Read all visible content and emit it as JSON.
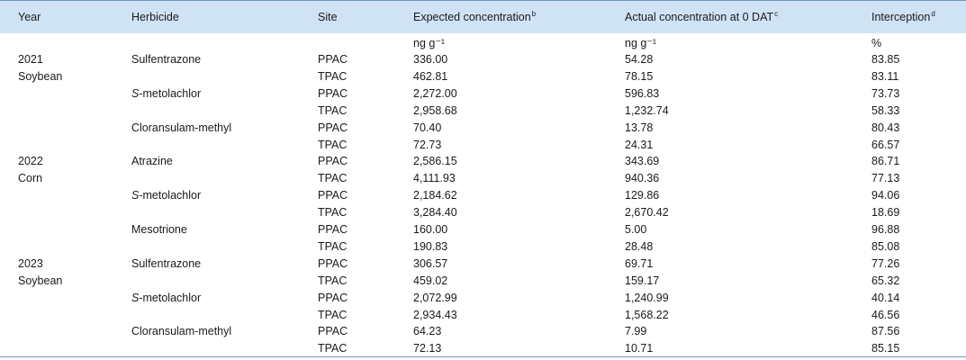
{
  "headers": {
    "year": "Year",
    "herbicide": "Herbicide",
    "site": "Site",
    "expected": "Expected concentration",
    "expected_sup": "b",
    "actual": "Actual concentration at 0 DAT",
    "actual_sup": "c",
    "interception": "Interception",
    "interception_sup": "d"
  },
  "units": {
    "expected": "ng g⁻¹",
    "actual": "ng g⁻¹",
    "interception": "%"
  },
  "years": [
    {
      "year": "2021",
      "crop": "Soybean"
    },
    {
      "year": "2022",
      "crop": "Corn"
    },
    {
      "year": "2023",
      "crop": "Soybean"
    }
  ],
  "herbicides": [
    {
      "prefix": "",
      "name": "Sulfentrazone"
    },
    {
      "prefix": "S",
      "name": "-metolachlor"
    },
    {
      "prefix": "",
      "name": "Cloransulam-methyl"
    },
    {
      "prefix": "",
      "name": "Atrazine"
    },
    {
      "prefix": "S",
      "name": "-metolachlor"
    },
    {
      "prefix": "",
      "name": "Mesotrione"
    },
    {
      "prefix": "",
      "name": "Sulfentrazone"
    },
    {
      "prefix": "S",
      "name": "-metolachlor"
    },
    {
      "prefix": "",
      "name": "Cloransulam-methyl"
    }
  ],
  "rows": [
    {
      "site": "PPAC",
      "expected": "336.00",
      "actual": "54.28",
      "interception": "83.85"
    },
    {
      "site": "TPAC",
      "expected": "462.81",
      "actual": "78.15",
      "interception": "83.11"
    },
    {
      "site": "PPAC",
      "expected": "2,272.00",
      "actual": "596.83",
      "interception": "73.73"
    },
    {
      "site": "TPAC",
      "expected": "2,958.68",
      "actual": "1,232.74",
      "interception": "58.33"
    },
    {
      "site": "PPAC",
      "expected": "70.40",
      "actual": "13.78",
      "interception": "80.43"
    },
    {
      "site": "TPAC",
      "expected": "72.73",
      "actual": "24.31",
      "interception": "66.57"
    },
    {
      "site": "PPAC",
      "expected": "2,586.15",
      "actual": "343.69",
      "interception": "86.71"
    },
    {
      "site": "TPAC",
      "expected": "4,111.93",
      "actual": "940.36",
      "interception": "77.13"
    },
    {
      "site": "PPAC",
      "expected": "2,184.62",
      "actual": "129.86",
      "interception": "94.06"
    },
    {
      "site": "TPAC",
      "expected": "3,284.40",
      "actual": "2,670.42",
      "interception": "18.69"
    },
    {
      "site": "PPAC",
      "expected": "160.00",
      "actual": "5.00",
      "interception": "96.88"
    },
    {
      "site": "TPAC",
      "expected": "190.83",
      "actual": "28.48",
      "interception": "85.08"
    },
    {
      "site": "PPAC",
      "expected": "306.57",
      "actual": "69.71",
      "interception": "77.26"
    },
    {
      "site": "TPAC",
      "expected": "459.02",
      "actual": "159.17",
      "interception": "65.32"
    },
    {
      "site": "PPAC",
      "expected": "2,072.99",
      "actual": "1,240.99",
      "interception": "40.14"
    },
    {
      "site": "TPAC",
      "expected": "2,934.43",
      "actual": "1,568.22",
      "interception": "46.56"
    },
    {
      "site": "PPAC",
      "expected": "64.23",
      "actual": "7.99",
      "interception": "87.56"
    },
    {
      "site": "TPAC",
      "expected": "72.13",
      "actual": "10.71",
      "interception": "85.15"
    }
  ]
}
